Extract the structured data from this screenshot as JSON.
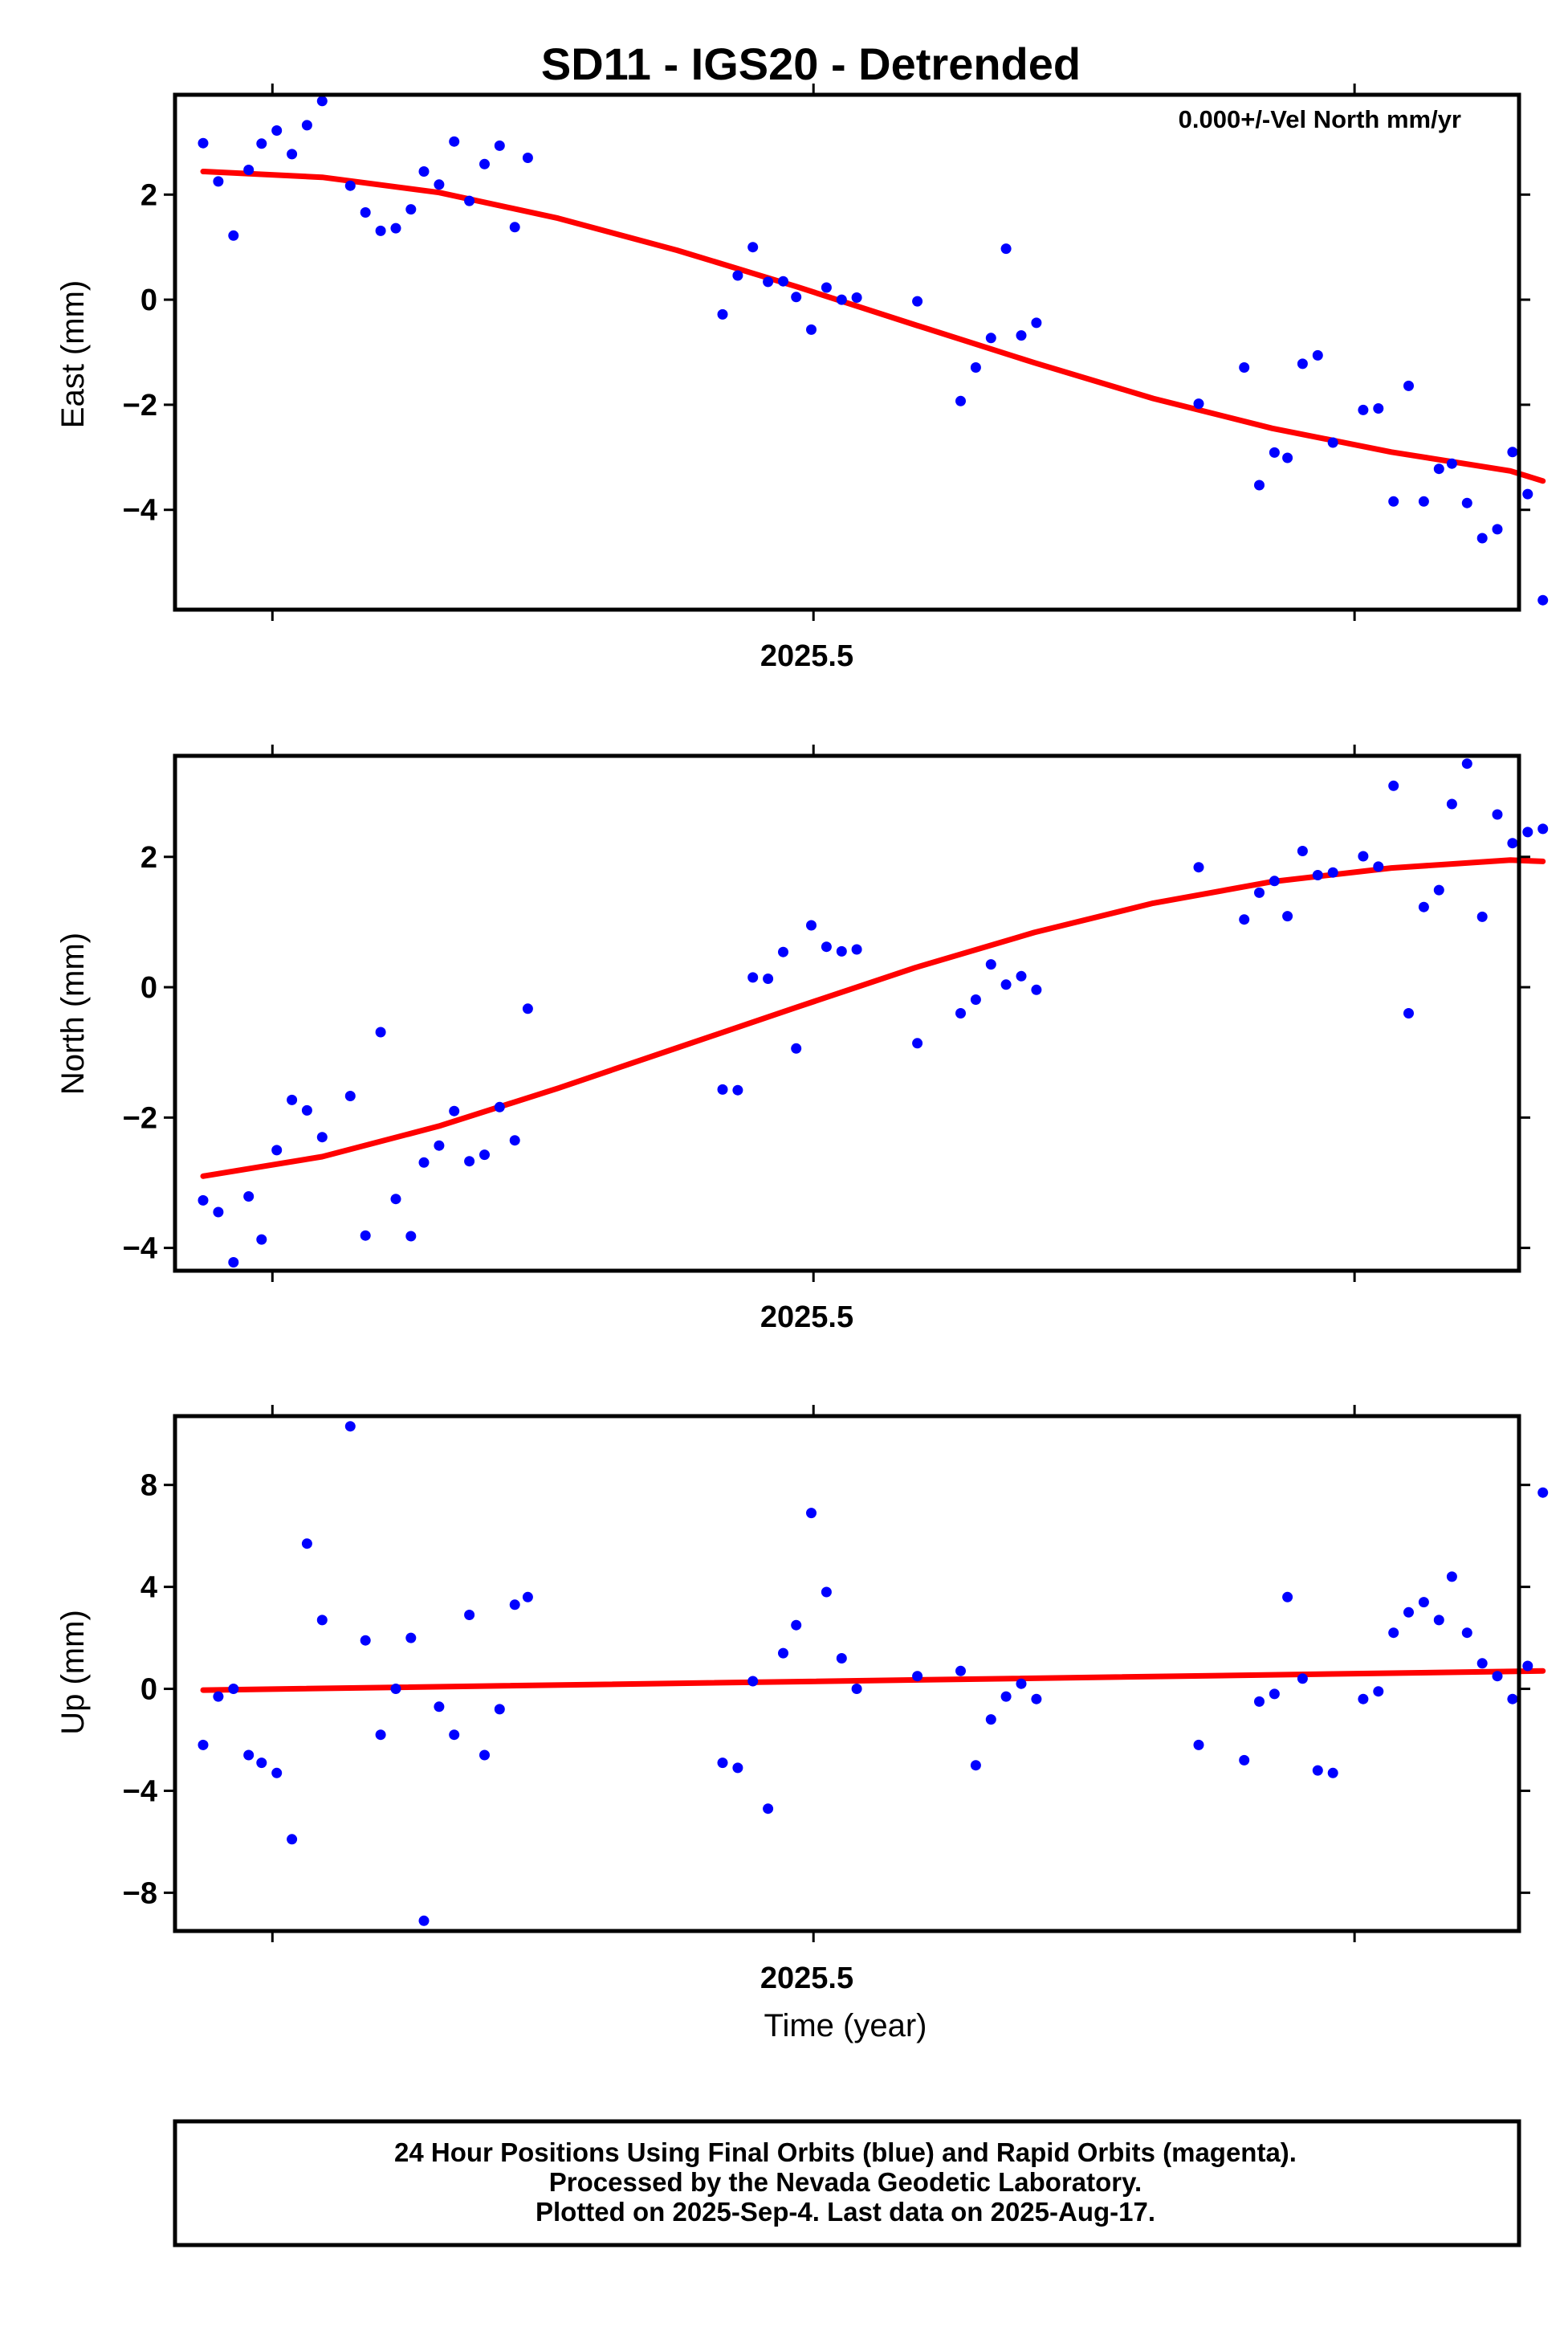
{
  "title": "SD11 - IGS20 - Detrended",
  "colors": {
    "final_orbits": "#0000ff",
    "rapid_orbits": "#ff00ff",
    "model": "#ff0000",
    "frame": "#000000"
  },
  "chart_data": [
    {
      "type": "scatter",
      "name": "east",
      "ylabel": "East (mm)",
      "xlabel": "",
      "x_tick_label": "2025.5",
      "annotation": "0.000+/-Vel North mm/yr",
      "xlim": [
        2025.205,
        2025.826
      ],
      "ylim": [
        -5.9,
        3.9
      ],
      "yticks": [
        2,
        0,
        -2,
        -4
      ],
      "ytick_labels": [
        "2",
        "0",
        "−2",
        "−4"
      ],
      "x_ticks": [
        2025.25,
        2025.5,
        2025.75
      ],
      "series": [
        {
          "name": "Final orbits (blue)",
          "points": [
            [
              2025.218,
              2.98
            ],
            [
              2025.225,
              2.25
            ],
            [
              2025.232,
              1.22
            ],
            [
              2025.239,
              2.47
            ],
            [
              2025.245,
              2.97
            ],
            [
              2025.252,
              3.22
            ],
            [
              2025.259,
              2.77
            ],
            [
              2025.266,
              3.32
            ],
            [
              2025.273,
              3.78
            ],
            [
              2025.286,
              2.17
            ],
            [
              2025.293,
              1.66
            ],
            [
              2025.3,
              1.31
            ],
            [
              2025.307,
              1.36
            ],
            [
              2025.314,
              1.72
            ],
            [
              2025.32,
              2.44
            ],
            [
              2025.327,
              2.19
            ],
            [
              2025.334,
              3.01
            ],
            [
              2025.341,
              1.88
            ],
            [
              2025.348,
              2.58
            ],
            [
              2025.355,
              2.93
            ],
            [
              2025.362,
              1.38
            ],
            [
              2025.368,
              2.7
            ],
            [
              2025.458,
              -0.28
            ],
            [
              2025.465,
              0.46
            ],
            [
              2025.472,
              1.0
            ],
            [
              2025.479,
              0.34
            ],
            [
              2025.486,
              0.35
            ],
            [
              2025.492,
              0.05
            ],
            [
              2025.499,
              -0.57
            ],
            [
              2025.506,
              0.23
            ],
            [
              2025.513,
              0.0
            ],
            [
              2025.52,
              0.04
            ],
            [
              2025.548,
              -0.03
            ],
            [
              2025.568,
              -1.93
            ],
            [
              2025.575,
              -1.29
            ],
            [
              2025.582,
              -0.73
            ],
            [
              2025.589,
              0.97
            ],
            [
              2025.596,
              -0.68
            ],
            [
              2025.603,
              -0.44
            ],
            [
              2025.678,
              -1.98
            ],
            [
              2025.699,
              -1.29
            ],
            [
              2025.706,
              -3.53
            ],
            [
              2025.713,
              -2.91
            ],
            [
              2025.719,
              -3.01
            ],
            [
              2025.726,
              -1.22
            ],
            [
              2025.733,
              -1.06
            ],
            [
              2025.74,
              -2.72
            ],
            [
              2025.754,
              -2.1
            ],
            [
              2025.761,
              -2.07
            ],
            [
              2025.768,
              -3.84
            ],
            [
              2025.775,
              -1.64
            ],
            [
              2025.782,
              -3.84
            ],
            [
              2025.789,
              -3.22
            ],
            [
              2025.795,
              -3.12
            ],
            [
              2025.802,
              -3.87
            ],
            [
              2025.809,
              -4.54
            ],
            [
              2025.816,
              -4.37
            ],
            [
              2025.823,
              -2.9
            ],
            [
              2025.83,
              -3.7
            ],
            [
              2025.837,
              -5.72
            ]
          ]
        }
      ],
      "model": [
        [
          2025.218,
          2.44
        ],
        [
          2025.273,
          2.33
        ],
        [
          2025.327,
          2.04
        ],
        [
          2025.382,
          1.55
        ],
        [
          2025.437,
          0.94
        ],
        [
          2025.492,
          0.25
        ],
        [
          2025.547,
          -0.48
        ],
        [
          2025.602,
          -1.2
        ],
        [
          2025.657,
          -1.88
        ],
        [
          2025.712,
          -2.45
        ],
        [
          2025.767,
          -2.9
        ],
        [
          2025.822,
          -3.26
        ],
        [
          2025.837,
          -3.45
        ]
      ]
    },
    {
      "type": "scatter",
      "name": "north",
      "ylabel": "North (mm)",
      "xlabel": "",
      "x_tick_label": "2025.5",
      "xlim": [
        2025.205,
        2025.826
      ],
      "ylim": [
        -4.35,
        3.55
      ],
      "yticks": [
        2,
        0,
        -2,
        -4
      ],
      "ytick_labels": [
        "2",
        "0",
        "−2",
        "−4"
      ],
      "x_ticks": [
        2025.25,
        2025.5,
        2025.75
      ],
      "series": [
        {
          "name": "Final orbits (blue)",
          "points": [
            [
              2025.218,
              -3.27
            ],
            [
              2025.225,
              -3.45
            ],
            [
              2025.232,
              -4.22
            ],
            [
              2025.239,
              -3.21
            ],
            [
              2025.245,
              -3.87
            ],
            [
              2025.252,
              -2.5
            ],
            [
              2025.259,
              -1.73
            ],
            [
              2025.266,
              -1.89
            ],
            [
              2025.273,
              -2.3
            ],
            [
              2025.286,
              -1.67
            ],
            [
              2025.293,
              -3.81
            ],
            [
              2025.3,
              -0.69
            ],
            [
              2025.307,
              -3.25
            ],
            [
              2025.314,
              -3.82
            ],
            [
              2025.32,
              -2.69
            ],
            [
              2025.327,
              -2.43
            ],
            [
              2025.334,
              -1.9
            ],
            [
              2025.341,
              -2.67
            ],
            [
              2025.348,
              -2.57
            ],
            [
              2025.355,
              -1.84
            ],
            [
              2025.362,
              -2.35
            ],
            [
              2025.368,
              -0.33
            ],
            [
              2025.458,
              -1.57
            ],
            [
              2025.465,
              -1.58
            ],
            [
              2025.472,
              0.15
            ],
            [
              2025.479,
              0.13
            ],
            [
              2025.486,
              0.54
            ],
            [
              2025.492,
              -0.94
            ],
            [
              2025.499,
              0.95
            ],
            [
              2025.506,
              0.62
            ],
            [
              2025.513,
              0.55
            ],
            [
              2025.52,
              0.58
            ],
            [
              2025.548,
              -0.86
            ],
            [
              2025.568,
              -0.4
            ],
            [
              2025.575,
              -0.19
            ],
            [
              2025.582,
              0.35
            ],
            [
              2025.589,
              0.04
            ],
            [
              2025.596,
              0.17
            ],
            [
              2025.603,
              -0.04
            ],
            [
              2025.678,
              1.84
            ],
            [
              2025.699,
              1.04
            ],
            [
              2025.706,
              1.45
            ],
            [
              2025.713,
              1.63
            ],
            [
              2025.719,
              1.09
            ],
            [
              2025.726,
              2.09
            ],
            [
              2025.733,
              1.72
            ],
            [
              2025.74,
              1.76
            ],
            [
              2025.754,
              2.01
            ],
            [
              2025.761,
              1.85
            ],
            [
              2025.768,
              3.09
            ],
            [
              2025.775,
              -0.4
            ],
            [
              2025.782,
              1.23
            ],
            [
              2025.789,
              1.49
            ],
            [
              2025.795,
              2.81
            ],
            [
              2025.802,
              3.43
            ],
            [
              2025.809,
              1.08
            ],
            [
              2025.816,
              2.65
            ],
            [
              2025.823,
              2.21
            ],
            [
              2025.83,
              2.38
            ],
            [
              2025.837,
              2.43
            ]
          ]
        }
      ],
      "model": [
        [
          2025.218,
          -2.9
        ],
        [
          2025.273,
          -2.6
        ],
        [
          2025.327,
          -2.13
        ],
        [
          2025.382,
          -1.55
        ],
        [
          2025.437,
          -0.93
        ],
        [
          2025.492,
          -0.31
        ],
        [
          2025.547,
          0.3
        ],
        [
          2025.602,
          0.84
        ],
        [
          2025.657,
          1.29
        ],
        [
          2025.712,
          1.62
        ],
        [
          2025.767,
          1.83
        ],
        [
          2025.822,
          1.95
        ],
        [
          2025.837,
          1.93
        ]
      ]
    },
    {
      "type": "scatter",
      "name": "up",
      "ylabel": "Up (mm)",
      "xlabel": "Time (year)",
      "x_tick_label": "2025.5",
      "xlim": [
        2025.205,
        2025.826
      ],
      "ylim": [
        -9.5,
        10.7
      ],
      "yticks": [
        8,
        4,
        0,
        -4,
        -8
      ],
      "ytick_labels": [
        "8",
        "4",
        "0",
        "−4",
        "−8"
      ],
      "x_ticks": [
        2025.25,
        2025.5,
        2025.75
      ],
      "series": [
        {
          "name": "Final orbits (blue)",
          "points": [
            [
              2025.218,
              -2.2
            ],
            [
              2025.225,
              -0.3
            ],
            [
              2025.232,
              0.0
            ],
            [
              2025.239,
              -2.6
            ],
            [
              2025.245,
              -2.9
            ],
            [
              2025.252,
              -3.3
            ],
            [
              2025.259,
              -5.9
            ],
            [
              2025.266,
              5.7
            ],
            [
              2025.273,
              2.7
            ],
            [
              2025.286,
              10.3
            ],
            [
              2025.293,
              1.9
            ],
            [
              2025.3,
              -1.8
            ],
            [
              2025.307,
              0.0
            ],
            [
              2025.314,
              2.0
            ],
            [
              2025.32,
              -9.1
            ],
            [
              2025.327,
              -0.7
            ],
            [
              2025.334,
              -1.8
            ],
            [
              2025.341,
              2.9
            ],
            [
              2025.348,
              -2.6
            ],
            [
              2025.355,
              -0.8
            ],
            [
              2025.362,
              3.3
            ],
            [
              2025.368,
              3.6
            ],
            [
              2025.458,
              -2.9
            ],
            [
              2025.465,
              -3.1
            ],
            [
              2025.472,
              0.3
            ],
            [
              2025.479,
              -4.7
            ],
            [
              2025.486,
              1.4
            ],
            [
              2025.492,
              2.5
            ],
            [
              2025.499,
              6.9
            ],
            [
              2025.506,
              3.8
            ],
            [
              2025.513,
              1.2
            ],
            [
              2025.52,
              0.0
            ],
            [
              2025.548,
              0.5
            ],
            [
              2025.568,
              0.7
            ],
            [
              2025.575,
              -3.0
            ],
            [
              2025.582,
              -1.2
            ],
            [
              2025.589,
              -0.3
            ],
            [
              2025.596,
              0.2
            ],
            [
              2025.603,
              -0.4
            ],
            [
              2025.678,
              -2.2
            ],
            [
              2025.699,
              -2.8
            ],
            [
              2025.706,
              -0.5
            ],
            [
              2025.713,
              -0.2
            ],
            [
              2025.719,
              3.6
            ],
            [
              2025.726,
              0.4
            ],
            [
              2025.733,
              -3.2
            ],
            [
              2025.74,
              -3.3
            ],
            [
              2025.754,
              -0.4
            ],
            [
              2025.761,
              -0.1
            ],
            [
              2025.768,
              2.2
            ],
            [
              2025.775,
              3.0
            ],
            [
              2025.782,
              3.4
            ],
            [
              2025.789,
              2.7
            ],
            [
              2025.795,
              4.4
            ],
            [
              2025.802,
              2.2
            ],
            [
              2025.809,
              1.0
            ],
            [
              2025.816,
              0.5
            ],
            [
              2025.823,
              -0.4
            ],
            [
              2025.83,
              0.9
            ],
            [
              2025.837,
              7.7
            ]
          ]
        }
      ],
      "model": [
        [
          2025.218,
          -0.05
        ],
        [
          2025.837,
          0.7
        ]
      ]
    }
  ],
  "footer": {
    "line1": "24 Hour Positions Using Final Orbits (blue) and Rapid Orbits (magenta).",
    "line2": "Processed by the Nevada Geodetic Laboratory.",
    "line3": "Plotted on 2025-Sep-4. Last data on 2025-Aug-17."
  }
}
